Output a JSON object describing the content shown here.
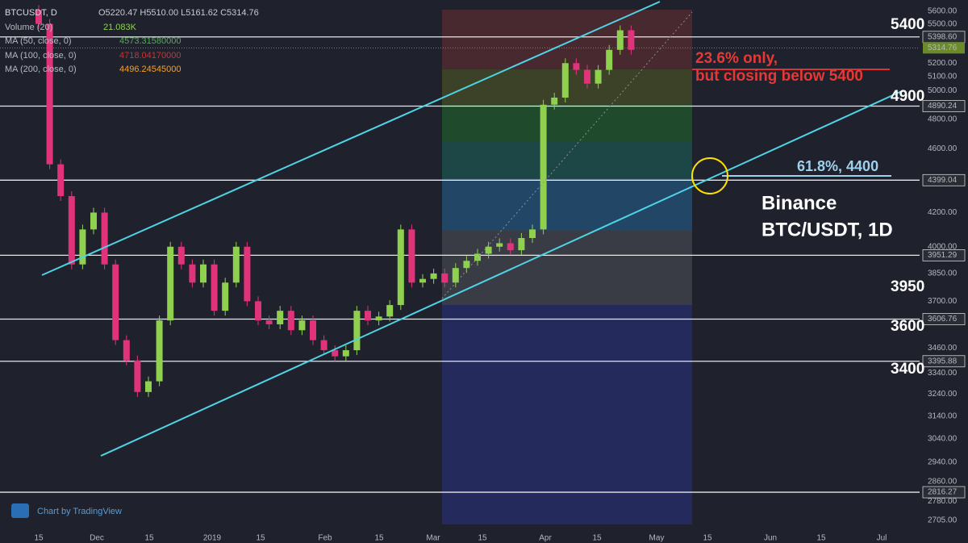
{
  "header": {
    "symbol": "BTCUSDT, D",
    "ohlc": "O5220.47 H5510.00 L5161.62 C5314.76",
    "indicators": [
      {
        "name": "Volume (20)",
        "value": "21.083K"
      },
      {
        "name": "MA (50, close, 0)",
        "value": "4573.31580000"
      },
      {
        "name": "MA (100, close, 0)",
        "value": "4718.04170000"
      },
      {
        "name": "MA (200, close, 0)",
        "value": "4496.24545000"
      }
    ]
  },
  "price_ticks": [
    {
      "value": 5600,
      "label": "5600.00"
    },
    {
      "value": 5500,
      "label": "5500.00"
    },
    {
      "value": 5200,
      "label": "5200.00"
    },
    {
      "value": 5100,
      "label": "5100.00"
    },
    {
      "value": 5000,
      "label": "5000.00"
    },
    {
      "value": 4800,
      "label": "4800.00"
    },
    {
      "value": 4600,
      "label": "4600.00"
    },
    {
      "value": 4200,
      "label": "4200.00"
    },
    {
      "value": 4000,
      "label": "4000.00"
    },
    {
      "value": 3850,
      "label": "3850.00"
    },
    {
      "value": 3700,
      "label": "3700.00"
    },
    {
      "value": 3460,
      "label": "3460.00"
    },
    {
      "value": 3340,
      "label": "3340.00"
    },
    {
      "value": 3240,
      "label": "3240.00"
    },
    {
      "value": 3140,
      "label": "3140.00"
    },
    {
      "value": 3040,
      "label": "3040.00"
    },
    {
      "value": 2940,
      "label": "2940.00"
    },
    {
      "value": 2860,
      "label": "2860.00"
    },
    {
      "value": 2780,
      "label": "2780.00"
    },
    {
      "value": 2705,
      "label": "2705.00"
    }
  ],
  "price_levels": [
    {
      "value": 5398.6,
      "label": "5398.60"
    },
    {
      "value": 4890.24,
      "label": "4890.24"
    },
    {
      "value": 4399.04,
      "label": "4399.04"
    },
    {
      "value": 3951.29,
      "label": "3951.29"
    },
    {
      "value": 3606.76,
      "label": "3606.76"
    },
    {
      "value": 3395.88,
      "label": "3395.88"
    },
    {
      "value": 2816.27,
      "label": "2816.27"
    }
  ],
  "last_price": {
    "value": 5314.76,
    "label": "5314.76"
  },
  "level_labels": [
    "5400",
    "4900",
    "3950",
    "3600",
    "3400"
  ],
  "time_labels": [
    "15",
    "Dec",
    "15",
    "2019",
    "15",
    "Feb",
    "15",
    "Mar",
    "15",
    "Apr",
    "15",
    "May",
    "15",
    "Jun",
    "15",
    "Jul"
  ],
  "candles": [
    5500,
    4500,
    4300,
    3900,
    4100,
    4200,
    3900,
    3500,
    3400,
    3250,
    3300,
    3600,
    4000,
    3900,
    3800,
    3900,
    3650,
    3800,
    4000,
    3700,
    3600,
    3580,
    3650,
    3550,
    3600,
    3500,
    3450,
    3420,
    3450,
    3650,
    3600,
    3620,
    3680,
    4100,
    3800,
    3820,
    3850,
    3800,
    3880,
    3920,
    3960,
    4000,
    4020,
    3980,
    4050,
    4100,
    4900,
    4950,
    5200,
    5150,
    5050,
    5150,
    5300,
    5450,
    5300
  ],
  "annotations": {
    "fib_top_line1": "23.6% only,",
    "fib_top_line2": "but closing below 5400",
    "fib_618": "61.8%, 4400",
    "exchange": "Binance",
    "pair": "BTC/USDT, 1D"
  },
  "footer": "Chart by TradingView"
}
